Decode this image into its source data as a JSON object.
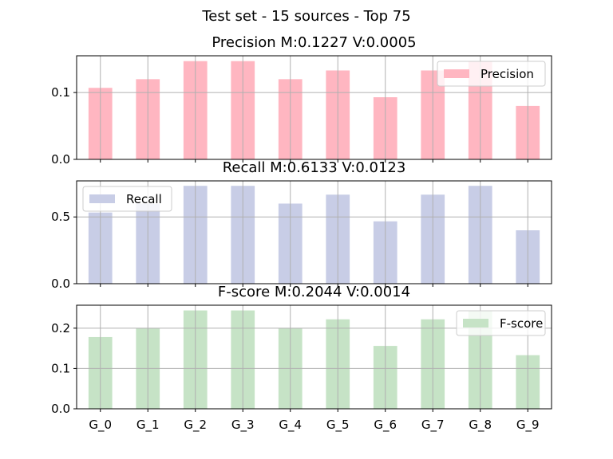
{
  "chart_data": {
    "suptitle": "Test set - 15 sources - Top 75",
    "categories": [
      "G_0",
      "G_1",
      "G_2",
      "G_3",
      "G_4",
      "G_5",
      "G_6",
      "G_7",
      "G_8",
      "G_9"
    ],
    "panels": [
      {
        "type": "bar",
        "title": "Precision M:0.1227 V:0.0005",
        "series": [
          {
            "name": "Precision",
            "color": "#ffb6c1",
            "values": [
              0.107,
              0.12,
              0.147,
              0.147,
              0.12,
              0.133,
              0.093,
              0.133,
              0.147,
              0.08
            ]
          }
        ],
        "ylim": [
          0,
          0.155
        ],
        "yticks": [
          0.0,
          0.1
        ],
        "ytick_labels": [
          "0.0",
          "0.1"
        ],
        "legend_position": "top-right",
        "grid": true
      },
      {
        "type": "bar",
        "title": "Recall M:0.6133 V:0.0123",
        "series": [
          {
            "name": "Recall",
            "color": "#c8cde6",
            "values": [
              0.533,
              0.6,
              0.733,
              0.733,
              0.6,
              0.667,
              0.467,
              0.667,
              0.733,
              0.4
            ]
          }
        ],
        "ylim": [
          0,
          0.77
        ],
        "yticks": [
          0.0,
          0.5
        ],
        "ytick_labels": [
          "0.0",
          "0.5"
        ],
        "legend_position": "top-left",
        "grid": true
      },
      {
        "type": "bar",
        "title": "F-score M:0.2044 V:0.0014",
        "series": [
          {
            "name": "F-score",
            "color": "#c6e3c6",
            "values": [
              0.178,
              0.2,
              0.244,
              0.244,
              0.2,
              0.222,
              0.156,
              0.222,
              0.244,
              0.133
            ]
          }
        ],
        "ylim": [
          0,
          0.257
        ],
        "yticks": [
          0.0,
          0.1,
          0.2
        ],
        "ytick_labels": [
          "0.0",
          "0.1",
          "0.2"
        ],
        "legend_position": "top-right",
        "grid": true
      }
    ]
  }
}
